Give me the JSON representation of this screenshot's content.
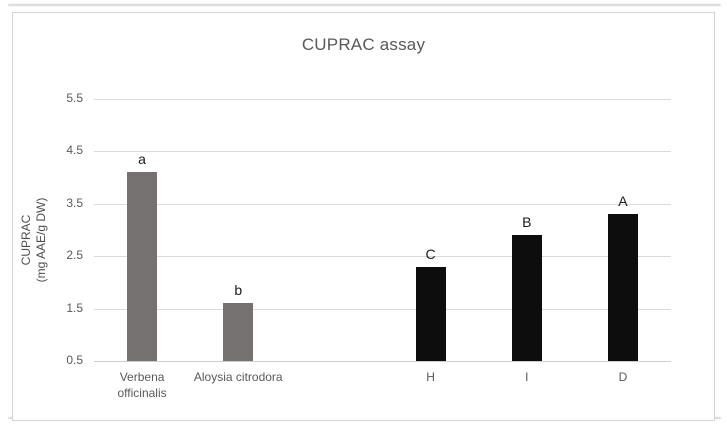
{
  "chart_data": {
    "type": "bar",
    "title": "CUPRAC assay",
    "ylabel": "CUPRAC (mg AAE/g DW)",
    "ylabel_lines": [
      "CUPRAC",
      "(mg AAE/g DW)"
    ],
    "categories": [
      "Verbena officinalis",
      "Aloysia citrodora",
      "",
      "H",
      "I",
      "D"
    ],
    "values": [
      4.1,
      1.6,
      null,
      2.3,
      2.9,
      3.3
    ],
    "bar_labels": [
      "a",
      "b",
      "",
      "C",
      "B",
      "A"
    ],
    "bar_colors": [
      "#767171",
      "#767171",
      null,
      "#0d0d0d",
      "#0d0d0d",
      "#0d0d0d"
    ],
    "ylim": [
      0.5,
      5.5
    ],
    "yticks": [
      0.5,
      1.5,
      2.5,
      3.5,
      4.5,
      5.5
    ],
    "grid": true,
    "legend": "none",
    "colors": {
      "herb_bars": "#767171",
      "honey_bars": "#0d0d0d",
      "gridline": "#d9d9d9",
      "labels": "#595959"
    }
  }
}
